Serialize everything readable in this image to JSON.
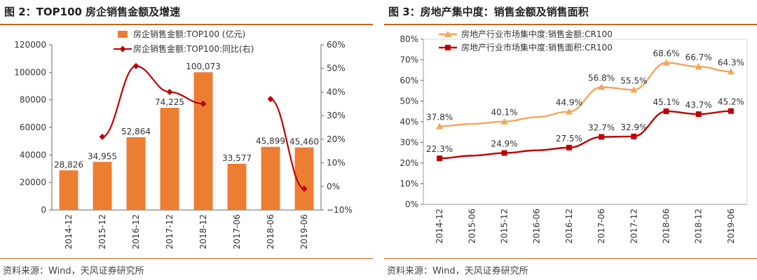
{
  "colors": {
    "orange": "#ED7D31",
    "darkred": "#C00000",
    "lightorange": "#F4A55A",
    "rule": "#c96418"
  },
  "chart_data": [
    {
      "type": "bar",
      "title": "图 2：TOP100 房企销售金额及增速",
      "source": "资料来源：Wind，天风证券研究所",
      "categories": [
        "2014-12",
        "2015-12",
        "2016-12",
        "2017-12",
        "2018-12",
        "2017-06",
        "2018-06",
        "2019-06"
      ],
      "series": [
        {
          "name": "房企销售金额:TOP100 (亿元)",
          "kind": "bar",
          "axis": "left",
          "values": [
            28826,
            34955,
            52864,
            74225,
            100073,
            33577,
            45899,
            45460
          ],
          "labels": [
            "28,826",
            "34,955",
            "52,864",
            "74,225",
            "100,073",
            "33,577",
            "45,899",
            "45,460"
          ]
        },
        {
          "name": "房企销售金额:TOP100:同比(右)",
          "kind": "line",
          "axis": "right",
          "segments": [
            [
              1,
              4
            ],
            [
              6,
              7
            ]
          ],
          "values": [
            null,
            21,
            51,
            40,
            35,
            null,
            37,
            -1
          ]
        }
      ],
      "ylim": [
        0,
        120000
      ],
      "yticks": [
        "0",
        "20000",
        "40000",
        "60000",
        "80000",
        "100000",
        "120000"
      ],
      "y2lim": [
        -10,
        60
      ],
      "y2ticks": [
        "−10%",
        "0%",
        "10%",
        "20%",
        "30%",
        "40%",
        "50%",
        "60%"
      ]
    },
    {
      "type": "line",
      "title": "图 3：房地产集中度：销售金额及销售面积",
      "source": "资料来源：Wind，天风证券研究所",
      "categories": [
        "2014-12",
        "2015-06",
        "2015-12",
        "2016-06",
        "2016-12",
        "2017-06",
        "2017-12",
        "2018-06",
        "2018-12",
        "2019-06"
      ],
      "series": [
        {
          "name": "房地产行业市场集中度:销售金额:CR100",
          "marker": "triangle",
          "values": [
            37.8,
            39.0,
            40.1,
            42.3,
            44.9,
            56.8,
            55.5,
            68.6,
            66.7,
            64.3
          ],
          "labels": [
            "37.8%",
            null,
            "40.1%",
            null,
            "44.9%",
            "56.8%",
            "55.5%",
            "68.6%",
            "66.7%",
            "64.3%"
          ]
        },
        {
          "name": "房地产行业市场集中度:销售面积:CR100",
          "marker": "square",
          "values": [
            22.3,
            23.6,
            24.9,
            26.2,
            27.5,
            32.7,
            32.9,
            45.1,
            43.7,
            45.2
          ],
          "labels": [
            "22.3%",
            null,
            "24.9%",
            null,
            "27.5%",
            "32.7%",
            "32.9%",
            "45.1%",
            "43.7%",
            "45.2%"
          ]
        }
      ],
      "ylim": [
        0,
        80
      ],
      "yticks": [
        "0%",
        "10%",
        "20%",
        "30%",
        "40%",
        "50%",
        "60%",
        "70%",
        "80%"
      ]
    }
  ]
}
